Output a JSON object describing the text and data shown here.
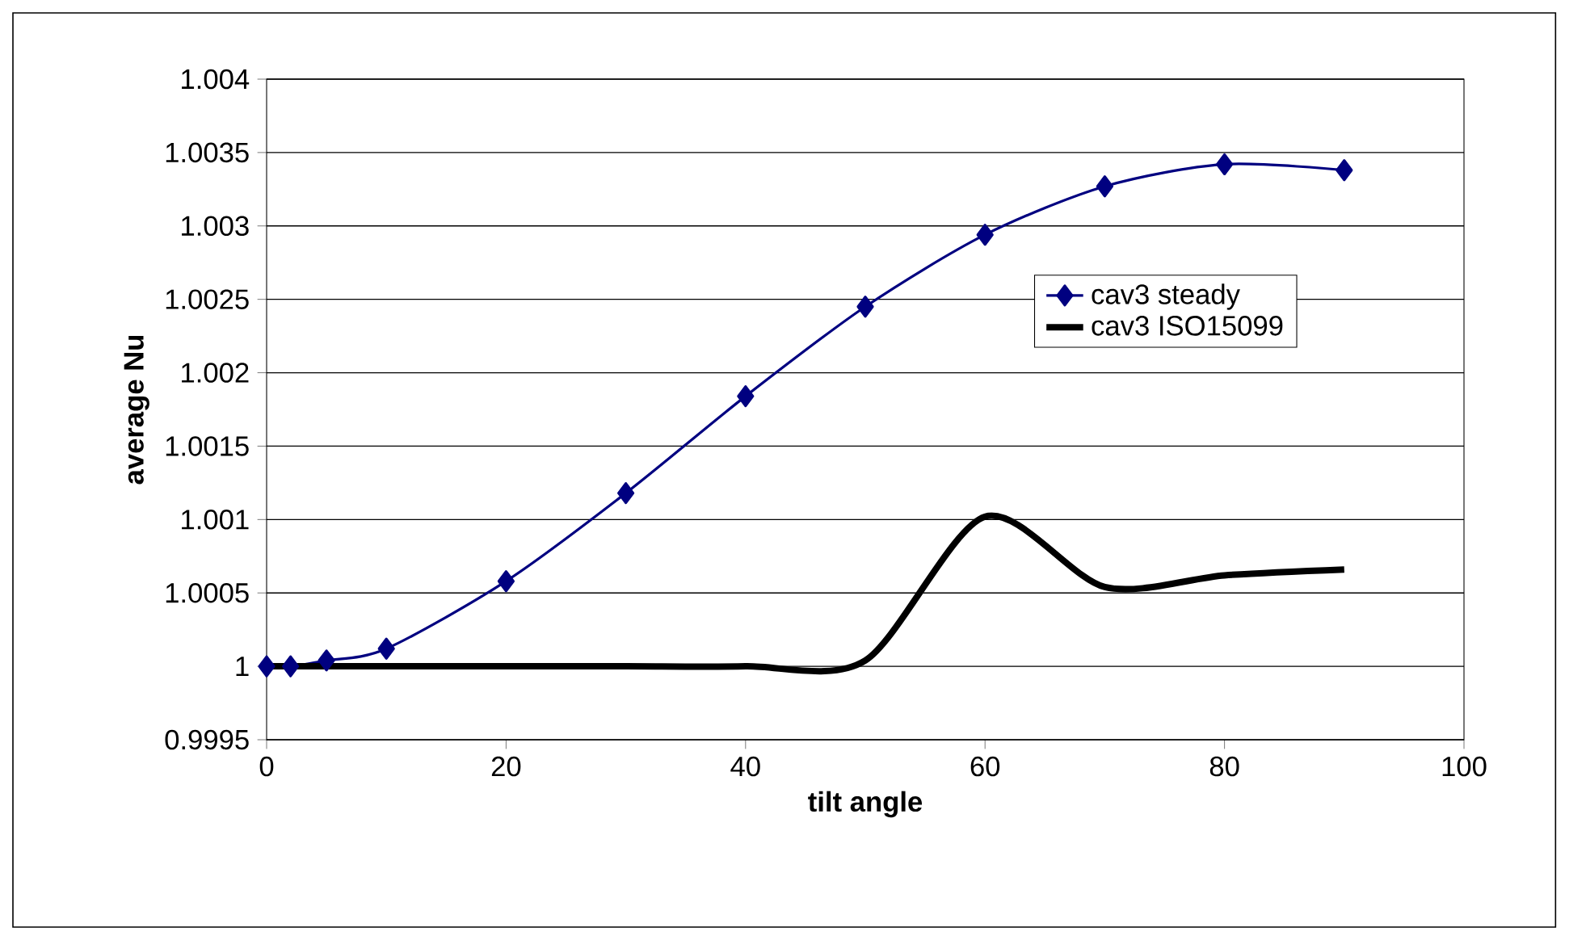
{
  "chart_data": {
    "type": "line",
    "xlabel": "tilt angle",
    "ylabel": "average Nu",
    "xlim": [
      0,
      100
    ],
    "xticks": [
      0,
      20,
      40,
      60,
      80,
      100
    ],
    "ylim": [
      0.9995,
      1.004
    ],
    "yticks": [
      0.9995,
      1,
      1.0005,
      1.001,
      1.0015,
      1.002,
      1.0025,
      1.003,
      1.0035,
      1.004
    ],
    "grid": "y",
    "legend": "right",
    "series": [
      {
        "name": "cav3 steady",
        "color": "#000080",
        "marker": "diamond",
        "x": [
          0,
          2,
          5,
          10,
          20,
          30,
          40,
          50,
          60,
          70,
          80,
          90
        ],
        "values": [
          1,
          1,
          1.00004,
          1.00012,
          1.00058,
          1.00118,
          1.00184,
          1.00245,
          1.00294,
          1.00327,
          1.00342,
          1.00338
        ]
      },
      {
        "name": "cav3 ISO15099",
        "color": "#000000",
        "marker": "none",
        "x": [
          0,
          10,
          20,
          30,
          40,
          50,
          60,
          70,
          80,
          90
        ],
        "values": [
          1,
          1,
          1,
          1,
          1,
          1.00004,
          1.00102,
          1.00054,
          1.00062,
          1.00066
        ]
      }
    ]
  }
}
